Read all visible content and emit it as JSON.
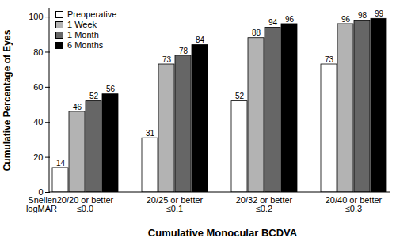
{
  "chart_data": {
    "type": "bar",
    "categories": [
      "20/20 or better",
      "20/25 or better",
      "20/32 or better",
      "20/40 or better"
    ],
    "secondary_categories": [
      "≤0.0",
      "≤0.1",
      "≤0.2",
      "≤0.3"
    ],
    "category_rows": [
      "Snellen",
      "logMAR"
    ],
    "xlabel": "Cumulative Monocular BCDVA",
    "ylabel": "Cumulative Percentage of Eyes",
    "series": [
      {
        "name": "Preoperative",
        "color": "#ffffff",
        "values": [
          14,
          31,
          52,
          73
        ]
      },
      {
        "name": "1 Week",
        "color": "#b3b3b3",
        "values": [
          46,
          73,
          88,
          96
        ]
      },
      {
        "name": "1 Month",
        "color": "#666666",
        "values": [
          52,
          78,
          94,
          98
        ]
      },
      {
        "name": "6 Months",
        "color": "#000000",
        "values": [
          56,
          84,
          96,
          99
        ]
      }
    ],
    "ylim": [
      0,
      105
    ],
    "yticks": [
      0,
      20,
      40,
      60,
      80,
      100
    ],
    "grid": false,
    "legend": "upper left",
    "data_labels": true
  }
}
